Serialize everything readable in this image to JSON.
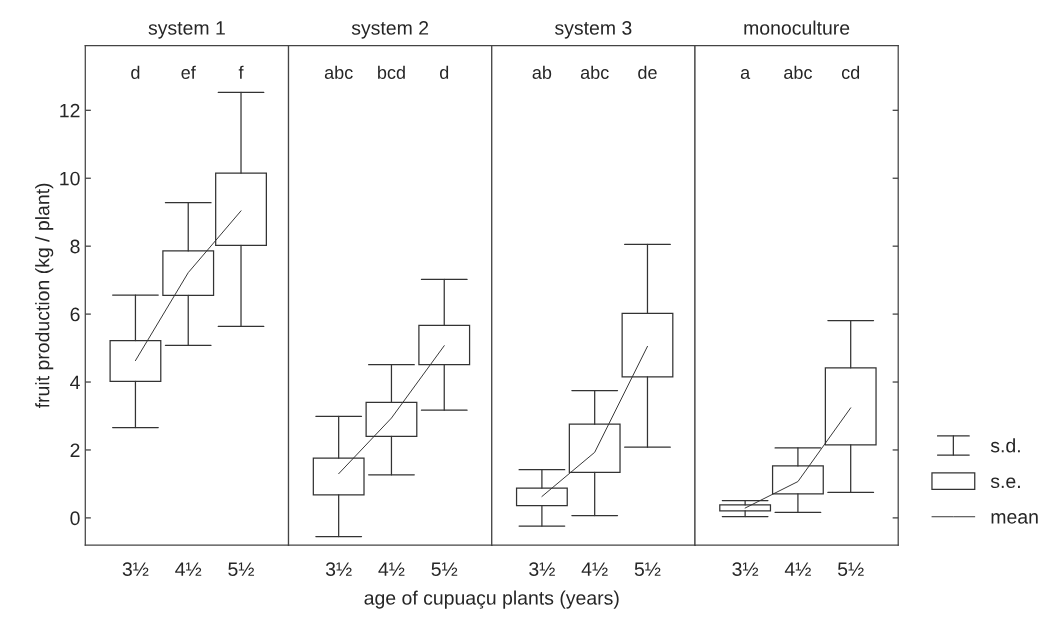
{
  "chart_data": [
    {
      "type": "box",
      "title": "system 1",
      "ylabel": "fruit production (kg / plant)",
      "xlabel": "age of cupuaçu plants (years)",
      "categories": [
        "3½",
        "4½",
        "5½"
      ],
      "color": "#333333",
      "ylim": [
        -0.8,
        13.9
      ],
      "yticks": [
        0,
        2,
        4,
        6,
        8,
        10,
        12
      ],
      "boxes": [
        {
          "low": 2.66,
          "q1": 4.02,
          "q3": 5.22,
          "high": 6.56
        },
        {
          "low": 5.08,
          "q1": 6.55,
          "q3": 7.86,
          "high": 9.28
        },
        {
          "low": 5.64,
          "q1": 8.02,
          "q3": 10.15,
          "high": 12.53
        }
      ],
      "series": [
        {
          "type": "line",
          "color": "#333333",
          "values": [
            4.63,
            7.22,
            9.04
          ]
        }
      ],
      "annotations": [
        "d",
        "ef",
        "f"
      ]
    },
    {
      "type": "box",
      "title": "system 2",
      "categories": [
        "3½",
        "4½",
        "5½"
      ],
      "color": "#333333",
      "ylim": [
        -0.8,
        13.9
      ],
      "yticks": [
        0,
        2,
        4,
        6,
        8,
        10,
        12
      ],
      "tick_labels": "x",
      "boxes": [
        {
          "low": -0.55,
          "q1": 0.68,
          "q3": 1.76,
          "high": 2.99
        },
        {
          "low": 1.27,
          "q1": 2.4,
          "q3": 3.4,
          "high": 4.51
        },
        {
          "low": 3.17,
          "q1": 4.51,
          "q3": 5.67,
          "high": 7.02
        }
      ],
      "series": [
        {
          "type": "line",
          "color": "#333333",
          "values": [
            1.3,
            2.94,
            5.07
          ]
        }
      ],
      "annotations": [
        "abc",
        "bcd",
        "d"
      ]
    },
    {
      "type": "box",
      "title": "system 3",
      "categories": [
        "3½",
        "4½",
        "5½"
      ],
      "color": "#333333",
      "ylim": [
        -0.8,
        13.9
      ],
      "yticks": [
        0,
        2,
        4,
        6,
        8,
        10,
        12
      ],
      "tick_labels": "x",
      "boxes": [
        {
          "low": -0.24,
          "q1": 0.36,
          "q3": 0.88,
          "high": 1.42
        },
        {
          "low": 0.07,
          "q1": 1.34,
          "q3": 2.76,
          "high": 3.75
        },
        {
          "low": 2.08,
          "q1": 4.15,
          "q3": 6.02,
          "high": 8.05
        }
      ],
      "series": [
        {
          "type": "line",
          "color": "#333333",
          "values": [
            0.63,
            1.93,
            5.05
          ]
        }
      ],
      "annotations": [
        "ab",
        "abc",
        "de"
      ]
    },
    {
      "type": "box",
      "title": "monoculture",
      "categories": [
        "3½",
        "4½",
        "5½"
      ],
      "color": "#333333",
      "ylim": [
        -0.8,
        13.9
      ],
      "yticks": [
        0,
        2,
        4,
        6,
        8,
        10,
        12
      ],
      "tick_labels": "x",
      "legend": "right",
      "boxes": [
        {
          "low": 0.04,
          "q1": 0.21,
          "q3": 0.38,
          "high": 0.51
        },
        {
          "low": 0.16,
          "q1": 0.71,
          "q3": 1.53,
          "high": 2.06
        },
        {
          "low": 0.75,
          "q1": 2.15,
          "q3": 4.42,
          "high": 5.81
        }
      ],
      "series": [
        {
          "type": "line",
          "name": "mean",
          "color": "#333333",
          "values": [
            0.29,
            1.07,
            3.24
          ]
        }
      ],
      "annotations": [
        "a",
        "abc",
        "cd",
        "s.d.",
        "s.e."
      ]
    }
  ]
}
